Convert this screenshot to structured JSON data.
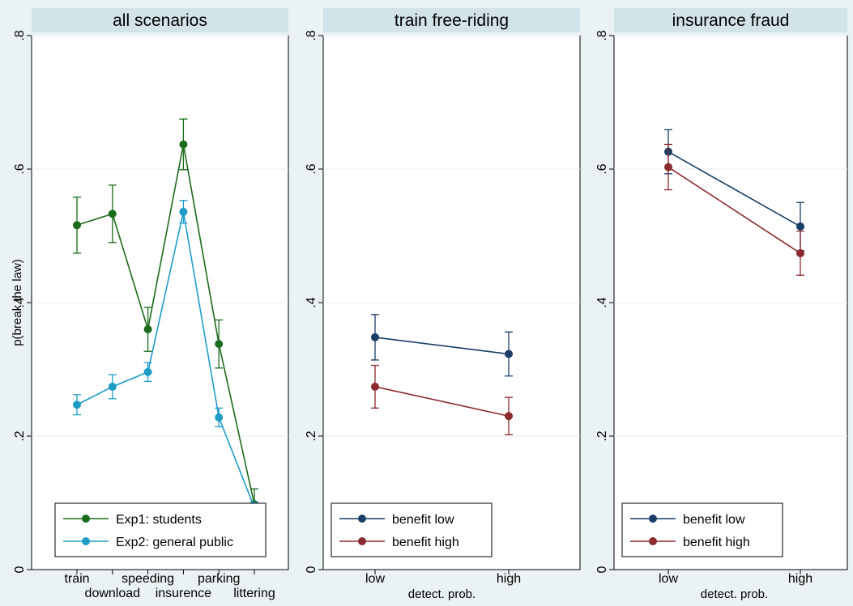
{
  "chart_data": [
    {
      "type": "line",
      "title": "all scenarios",
      "ylabel": "p(break the law)",
      "xlabel": "",
      "ylim": [
        0,
        0.8
      ],
      "yticks": [
        0,
        0.2,
        0.4,
        0.6,
        0.8
      ],
      "ytick_labels": [
        "0",
        ".2",
        ".4",
        ".6",
        ".8"
      ],
      "categories": [
        "train",
        "download",
        "speeding",
        "insurence",
        "parking",
        "littering"
      ],
      "grid": true,
      "legend_position": "bottom",
      "series": [
        {
          "name": "Exp1: students",
          "color": "#1a6b1a",
          "values": [
            0.516,
            0.533,
            0.36,
            0.637,
            0.338,
            0.098
          ],
          "ci_low": [
            0.474,
            0.49,
            0.327,
            0.599,
            0.302,
            0.075
          ],
          "ci_high": [
            0.558,
            0.576,
            0.393,
            0.675,
            0.374,
            0.121
          ]
        },
        {
          "name": "Exp2: general public",
          "color": "#1f9cc6",
          "values": [
            0.247,
            0.274,
            0.296,
            0.536,
            0.228,
            0.093
          ],
          "ci_low": [
            0.232,
            0.256,
            0.282,
            0.519,
            0.214,
            0.085
          ],
          "ci_high": [
            0.262,
            0.292,
            0.31,
            0.553,
            0.242,
            0.101
          ]
        }
      ]
    },
    {
      "type": "line",
      "title": "train free-riding",
      "xlabel": "detect. prob.",
      "ylabel": "",
      "ylim": [
        0,
        0.8
      ],
      "yticks": [
        0,
        0.2,
        0.4,
        0.6,
        0.8
      ],
      "ytick_labels": [
        "0",
        ".2",
        ".4",
        ".6",
        ".8"
      ],
      "categories": [
        "low",
        "high"
      ],
      "grid": true,
      "legend_position": "bottom",
      "series": [
        {
          "name": "benefit low",
          "color": "#1a3d66",
          "values": [
            0.348,
            0.323
          ],
          "ci_low": [
            0.314,
            0.29
          ],
          "ci_high": [
            0.382,
            0.356
          ]
        },
        {
          "name": "benefit high",
          "color": "#8b2a2f",
          "values": [
            0.274,
            0.23
          ],
          "ci_low": [
            0.242,
            0.202
          ],
          "ci_high": [
            0.306,
            0.258
          ]
        }
      ]
    },
    {
      "type": "line",
      "title": "insurance fraud",
      "xlabel": "detect. prob.",
      "ylabel": "",
      "ylim": [
        0,
        0.8
      ],
      "yticks": [
        0,
        0.2,
        0.4,
        0.6,
        0.8
      ],
      "ytick_labels": [
        "0",
        ".2",
        ".4",
        ".6",
        ".8"
      ],
      "categories": [
        "low",
        "high"
      ],
      "grid": true,
      "legend_position": "bottom",
      "series": [
        {
          "name": "benefit low",
          "color": "#1a3d66",
          "values": [
            0.626,
            0.514
          ],
          "ci_low": [
            0.593,
            0.478
          ],
          "ci_high": [
            0.659,
            0.55
          ]
        },
        {
          "name": "benefit high",
          "color": "#8b2a2f",
          "values": [
            0.603,
            0.474
          ],
          "ci_low": [
            0.569,
            0.441
          ],
          "ci_high": [
            0.637,
            0.507
          ]
        }
      ]
    }
  ]
}
